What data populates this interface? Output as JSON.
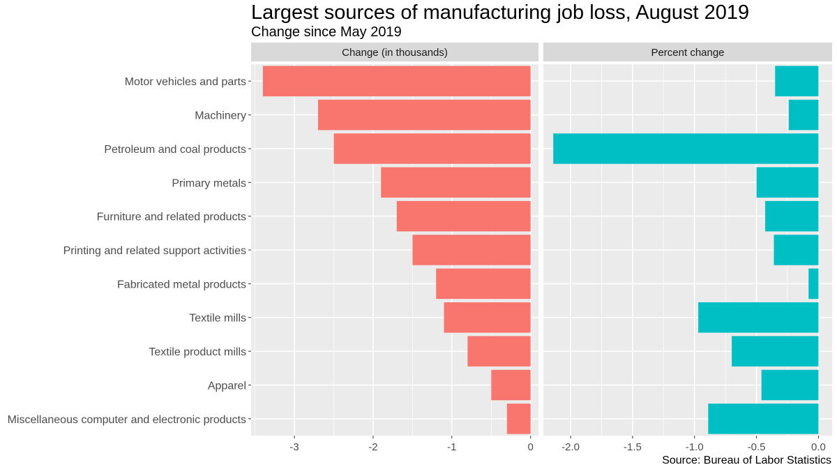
{
  "title": "Largest sources of manufacturing job loss, August 2019",
  "subtitle": "Change since May 2019",
  "caption": "Source: Bureau of Labor Statistics",
  "colors": {
    "panel_left_bar": "#F8766D",
    "panel_right_bar": "#00BFC4",
    "panel_bg": "#EBEBEB",
    "strip_bg": "#D9D9D9",
    "grid": "#FFFFFF"
  },
  "chart_data": {
    "type": "bar",
    "orientation": "horizontal",
    "facet": true,
    "categories": [
      "Motor vehicles and parts",
      "Machinery",
      "Petroleum and coal products",
      "Primary metals",
      "Furniture and related products",
      "Printing and related support activities",
      "Fabricated metal products",
      "Textile mills",
      "Textile product mills",
      "Apparel",
      "Miscellaneous computer and electronic products"
    ],
    "panels": [
      {
        "strip_label": "Change (in thousands)",
        "values": [
          -3.4,
          -2.7,
          -2.5,
          -1.9,
          -1.7,
          -1.5,
          -1.2,
          -1.1,
          -0.8,
          -0.5,
          -0.3
        ],
        "xlim": [
          -3.55,
          0.1
        ],
        "ticks": [
          -3,
          -2,
          -1,
          0
        ],
        "tick_labels": [
          "-3",
          "-2",
          "-1",
          "0"
        ]
      },
      {
        "strip_label": "Percent change",
        "values": [
          -0.35,
          -0.24,
          -2.14,
          -0.5,
          -0.43,
          -0.36,
          -0.08,
          -0.97,
          -0.7,
          -0.46,
          -0.89
        ],
        "xlim": [
          -2.22,
          0.11
        ],
        "ticks": [
          -2.0,
          -1.5,
          -1.0,
          -0.5,
          0.0
        ],
        "tick_labels": [
          "-2.0",
          "-1.5",
          "-1.0",
          "-0.5",
          "0.0"
        ]
      }
    ],
    "grid": true
  }
}
